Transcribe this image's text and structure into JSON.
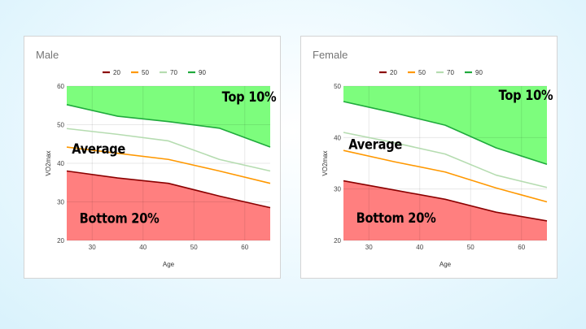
{
  "chart_data": [
    {
      "type": "area",
      "title": "Male",
      "xlabel": "Age",
      "ylabel": "VO2max",
      "xlim": [
        25,
        65
      ],
      "ylim": [
        20,
        60
      ],
      "x_ticks": [
        30,
        40,
        50,
        60
      ],
      "y_ticks": [
        20,
        30,
        40,
        50,
        60
      ],
      "legend_position": "top",
      "series": [
        {
          "name": "20",
          "color": "#8b0000",
          "points": [
            [
              25,
              38.0
            ],
            [
              35,
              36.2
            ],
            [
              45,
              34.8
            ],
            [
              55,
              31.5
            ],
            [
              65,
              28.5
            ]
          ]
        },
        {
          "name": "50",
          "color": "#ff9800",
          "points": [
            [
              25,
              44.2
            ],
            [
              35,
              42.6
            ],
            [
              45,
              41.0
            ],
            [
              55,
              38.0
            ],
            [
              65,
              34.8
            ]
          ]
        },
        {
          "name": "70",
          "color": "#b5dcb0",
          "points": [
            [
              25,
              49.0
            ],
            [
              35,
              47.5
            ],
            [
              45,
              45.8
            ],
            [
              55,
              41.0
            ],
            [
              65,
              38.0
            ]
          ]
        },
        {
          "name": "90",
          "color": "#1faa3c",
          "points": [
            [
              25,
              55.2
            ],
            [
              35,
              52.2
            ],
            [
              45,
              50.8
            ],
            [
              55,
              49.1
            ],
            [
              65,
              44.2
            ]
          ]
        }
      ],
      "annotations": [
        {
          "text": "Top 10%",
          "x": 55.5,
          "y": 56
        },
        {
          "text": "Average",
          "x": 26,
          "y": 42.5
        },
        {
          "text": "Bottom 20%",
          "x": 27.5,
          "y": 24.5
        }
      ]
    },
    {
      "type": "area",
      "title": "Female",
      "xlabel": "Age",
      "ylabel": "VO2max",
      "xlim": [
        25,
        65
      ],
      "ylim": [
        20,
        50
      ],
      "x_ticks": [
        30,
        40,
        50,
        60
      ],
      "y_ticks": [
        20,
        30,
        40,
        50
      ],
      "legend_position": "top",
      "series": [
        {
          "name": "20",
          "color": "#8b0000",
          "points": [
            [
              25,
              31.6
            ],
            [
              35,
              29.8
            ],
            [
              45,
              28.0
            ],
            [
              55,
              25.5
            ],
            [
              65,
              23.8
            ]
          ]
        },
        {
          "name": "50",
          "color": "#ff9800",
          "points": [
            [
              25,
              37.5
            ],
            [
              35,
              35.3
            ],
            [
              45,
              33.3
            ],
            [
              55,
              30.2
            ],
            [
              65,
              27.5
            ]
          ]
        },
        {
          "name": "70",
          "color": "#b5dcb0",
          "points": [
            [
              25,
              41.0
            ],
            [
              35,
              39.0
            ],
            [
              45,
              36.8
            ],
            [
              55,
              32.7
            ],
            [
              65,
              30.3
            ]
          ]
        },
        {
          "name": "90",
          "color": "#1faa3c",
          "points": [
            [
              25,
              47.0
            ],
            [
              35,
              44.8
            ],
            [
              45,
              42.4
            ],
            [
              55,
              38.0
            ],
            [
              65,
              34.8
            ]
          ]
        }
      ],
      "annotations": [
        {
          "text": "Top 10%",
          "x": 55.5,
          "y": 47.3
        },
        {
          "text": "Average",
          "x": 26,
          "y": 37.8
        },
        {
          "text": "Bottom 20%",
          "x": 27.5,
          "y": 23.5
        }
      ]
    }
  ],
  "colors": {
    "top_fill": "#7dfd7d",
    "bottom_fill": "#ff7f7f",
    "grid": "#e6e6e6",
    "axis_text": "#444444"
  }
}
